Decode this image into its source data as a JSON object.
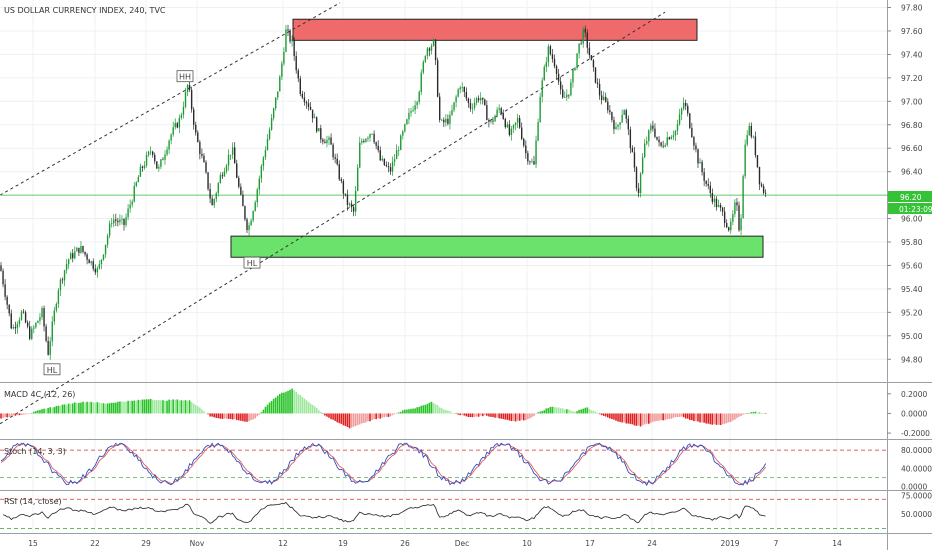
{
  "chart_data": {
    "type": "candlestick",
    "title": "US DOLLAR CURRENCY INDEX, 240, TVC",
    "price_axis": {
      "ticks": [
        "97.80",
        "97.60",
        "97.40",
        "97.20",
        "97.00",
        "96.80",
        "96.60",
        "96.40",
        "96.20",
        "96.00",
        "95.80",
        "95.60",
        "95.40",
        "95.20",
        "95.00",
        "94.80"
      ],
      "range": [
        94.62,
        97.84
      ],
      "last_price": "96.20",
      "countdown": "01:23:09"
    },
    "time_axis": {
      "ticks": [
        "15",
        "22",
        "29",
        "Nov",
        "12",
        "19",
        "26",
        "Dec",
        "10",
        "17",
        "24",
        "2019",
        "7",
        "14"
      ]
    },
    "price_path": [
      [
        0,
        95.6
      ],
      [
        12,
        95.05
      ],
      [
        22,
        95.2
      ],
      [
        30,
        95.0
      ],
      [
        42,
        95.2
      ],
      [
        48,
        94.85
      ],
      [
        58,
        95.4
      ],
      [
        68,
        95.65
      ],
      [
        80,
        95.75
      ],
      [
        98,
        95.55
      ],
      [
        112,
        96.0
      ],
      [
        124,
        95.95
      ],
      [
        140,
        96.4
      ],
      [
        152,
        96.6
      ],
      [
        158,
        96.4
      ],
      [
        170,
        96.7
      ],
      [
        180,
        96.85
      ],
      [
        188,
        97.15
      ],
      [
        196,
        96.7
      ],
      [
        204,
        96.45
      ],
      [
        212,
        96.1
      ],
      [
        220,
        96.35
      ],
      [
        232,
        96.6
      ],
      [
        240,
        96.2
      ],
      [
        248,
        95.9
      ],
      [
        256,
        96.2
      ],
      [
        264,
        96.55
      ],
      [
        272,
        96.85
      ],
      [
        280,
        97.2
      ],
      [
        286,
        97.6
      ],
      [
        292,
        97.5
      ],
      [
        300,
        97.1
      ],
      [
        310,
        96.95
      ],
      [
        320,
        96.7
      ],
      [
        330,
        96.65
      ],
      [
        338,
        96.4
      ],
      [
        346,
        96.15
      ],
      [
        354,
        96.05
      ],
      [
        360,
        96.65
      ],
      [
        372,
        96.75
      ],
      [
        380,
        96.5
      ],
      [
        390,
        96.4
      ],
      [
        400,
        96.65
      ],
      [
        410,
        96.9
      ],
      [
        418,
        97.05
      ],
      [
        426,
        97.45
      ],
      [
        434,
        97.5
      ],
      [
        440,
        96.8
      ],
      [
        450,
        96.85
      ],
      [
        460,
        97.15
      ],
      [
        470,
        96.95
      ],
      [
        480,
        97.05
      ],
      [
        490,
        96.8
      ],
      [
        500,
        96.95
      ],
      [
        510,
        96.7
      ],
      [
        518,
        96.85
      ],
      [
        526,
        96.55
      ],
      [
        534,
        96.45
      ],
      [
        540,
        97.05
      ],
      [
        548,
        97.45
      ],
      [
        556,
        97.3
      ],
      [
        562,
        97.0
      ],
      [
        570,
        97.1
      ],
      [
        578,
        97.45
      ],
      [
        584,
        97.6
      ],
      [
        592,
        97.3
      ],
      [
        600,
        97.05
      ],
      [
        608,
        96.95
      ],
      [
        616,
        96.75
      ],
      [
        624,
        96.95
      ],
      [
        632,
        96.55
      ],
      [
        638,
        96.2
      ],
      [
        644,
        96.6
      ],
      [
        652,
        96.8
      ],
      [
        660,
        96.6
      ],
      [
        668,
        96.7
      ],
      [
        676,
        96.75
      ],
      [
        684,
        97.0
      ],
      [
        690,
        96.8
      ],
      [
        698,
        96.5
      ],
      [
        706,
        96.3
      ],
      [
        714,
        96.15
      ],
      [
        722,
        96.05
      ],
      [
        730,
        95.9
      ],
      [
        736,
        96.15
      ],
      [
        740,
        95.85
      ],
      [
        744,
        96.55
      ],
      [
        748,
        96.8
      ],
      [
        754,
        96.65
      ],
      [
        760,
        96.3
      ],
      [
        766,
        96.2
      ]
    ],
    "levels": {
      "resistance_zone": [
        97.52,
        97.7
      ],
      "support_zone": [
        95.67,
        95.85
      ]
    },
    "annotations": [
      {
        "text": "HH",
        "time_x": 185,
        "price": 97.21
      },
      {
        "text": "HL",
        "time_x": 252,
        "price": 95.62
      },
      {
        "text": "HL",
        "time_x": 52,
        "price": 94.71
      }
    ],
    "trend_channel": {
      "upper": [
        [
          0,
          96.2
        ],
        [
          340,
          97.84
        ]
      ],
      "lower": [
        [
          0,
          94.25
        ],
        [
          665,
          97.76
        ]
      ]
    },
    "indicators": {
      "macd": {
        "label": "MACD 4C (12, 26)",
        "ticks": [
          "0.2000",
          "0.0000",
          "-0.2000"
        ],
        "range": [
          -0.25,
          0.3
        ],
        "histogram_path": [
          [
            0,
            -0.05
          ],
          [
            15,
            -0.02
          ],
          [
            30,
            0.0
          ],
          [
            45,
            0.05
          ],
          [
            60,
            0.08
          ],
          [
            75,
            0.11
          ],
          [
            90,
            0.12
          ],
          [
            105,
            0.1
          ],
          [
            120,
            0.12
          ],
          [
            135,
            0.13
          ],
          [
            150,
            0.15
          ],
          [
            160,
            0.13
          ],
          [
            175,
            0.14
          ],
          [
            190,
            0.13
          ],
          [
            200,
            0.06
          ],
          [
            210,
            -0.03
          ],
          [
            220,
            -0.05
          ],
          [
            235,
            -0.06
          ],
          [
            248,
            -0.09
          ],
          [
            258,
            -0.03
          ],
          [
            268,
            0.1
          ],
          [
            280,
            0.2
          ],
          [
            292,
            0.25
          ],
          [
            302,
            0.17
          ],
          [
            315,
            0.07
          ],
          [
            325,
            -0.02
          ],
          [
            335,
            -0.08
          ],
          [
            350,
            -0.15
          ],
          [
            362,
            -0.1
          ],
          [
            375,
            -0.06
          ],
          [
            390,
            -0.03
          ],
          [
            405,
            0.04
          ],
          [
            418,
            0.06
          ],
          [
            432,
            0.12
          ],
          [
            442,
            0.05
          ],
          [
            455,
            0.0
          ],
          [
            470,
            -0.04
          ],
          [
            485,
            -0.02
          ],
          [
            500,
            -0.05
          ],
          [
            515,
            -0.08
          ],
          [
            528,
            -0.06
          ],
          [
            540,
            0.02
          ],
          [
            552,
            0.07
          ],
          [
            562,
            0.05
          ],
          [
            575,
            0.02
          ],
          [
            587,
            0.06
          ],
          [
            600,
            -0.01
          ],
          [
            612,
            -0.06
          ],
          [
            626,
            -0.1
          ],
          [
            640,
            -0.13
          ],
          [
            655,
            -0.08
          ],
          [
            668,
            -0.06
          ],
          [
            680,
            -0.03
          ],
          [
            692,
            -0.07
          ],
          [
            706,
            -0.1
          ],
          [
            718,
            -0.12
          ],
          [
            730,
            -0.09
          ],
          [
            742,
            -0.02
          ],
          [
            752,
            0.02
          ],
          [
            760,
            0.01
          ],
          [
            766,
            -0.01
          ]
        ]
      },
      "stoch": {
        "label": "Stoch (14, 3, 3)",
        "ticks": [
          "80.0000",
          "40.0000",
          "0.0000"
        ],
        "range": [
          -5,
          100
        ],
        "overbought": 80,
        "oversold": 20
      },
      "rsi": {
        "label": "RSI (14, close)",
        "ticks": [
          "75.0000",
          "50.0000"
        ],
        "range": [
          25,
          80
        ],
        "overbought": 70,
        "oversold": 30
      }
    }
  }
}
